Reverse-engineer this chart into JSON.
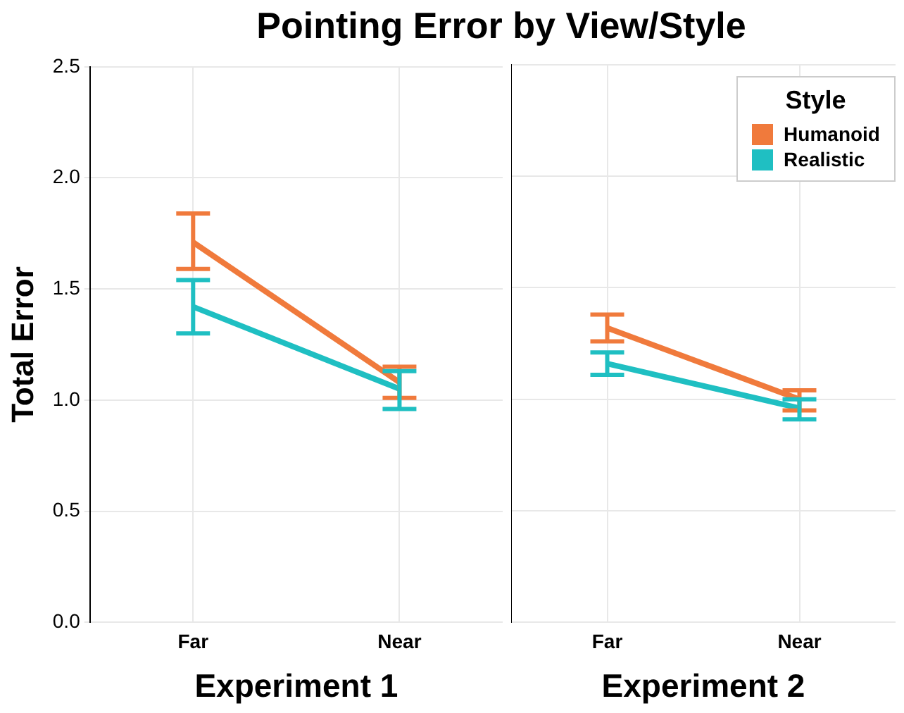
{
  "chart_data": [
    {
      "type": "line",
      "title": "Pointing Error by View/Style",
      "xlabel": "Experiment 1",
      "ylabel": "Total Error",
      "categories": [
        "Far",
        "Near"
      ],
      "ylim": [
        0,
        2.5
      ],
      "yticks": [
        {
          "value": 0,
          "label": "0.0"
        },
        {
          "value": 0.5,
          "label": "0.5"
        },
        {
          "value": 1,
          "label": "1.0"
        },
        {
          "value": 1.5,
          "label": "1.5"
        },
        {
          "value": 2,
          "label": "2.0"
        },
        {
          "value": 2.5,
          "label": "2.5"
        }
      ],
      "grid": true,
      "legend": false,
      "marker": "none",
      "series": [
        {
          "color": "#f07a3c",
          "values": [
            1.71,
            1.08
          ],
          "errors": [
            [
              1.59,
              1.84
            ],
            [
              1.01,
              1.15
            ]
          ]
        },
        {
          "color": "#1fbfc2",
          "values": [
            1.42,
            1.05
          ],
          "errors": [
            [
              1.3,
              1.54
            ],
            [
              0.96,
              1.13
            ]
          ]
        }
      ]
    },
    {
      "type": "line",
      "xlabel": "Experiment 2",
      "categories": [
        "Far",
        "Near"
      ],
      "ylim": [
        0,
        2.5
      ],
      "yticks": [
        {
          "value": 0,
          "label": null
        },
        {
          "value": 0.5,
          "label": null
        },
        {
          "value": 1,
          "label": null
        },
        {
          "value": 1.5,
          "label": null
        },
        {
          "value": 2,
          "label": null
        },
        {
          "value": 2.5,
          "label": null
        }
      ],
      "tick_labels": "x",
      "grid": true,
      "legend": "top right",
      "legend_title": "Style",
      "marker": "none",
      "series": [
        {
          "name": "Humanoid",
          "color": "#f07a3c",
          "values": [
            1.32,
            1.0
          ],
          "errors": [
            [
              1.26,
              1.38
            ],
            [
              0.95,
              1.04
            ]
          ]
        },
        {
          "name": "Realistic",
          "color": "#1fbfc2",
          "values": [
            1.16,
            0.96
          ],
          "errors": [
            [
              1.11,
              1.21
            ],
            [
              0.91,
              1.0
            ]
          ]
        }
      ]
    }
  ]
}
